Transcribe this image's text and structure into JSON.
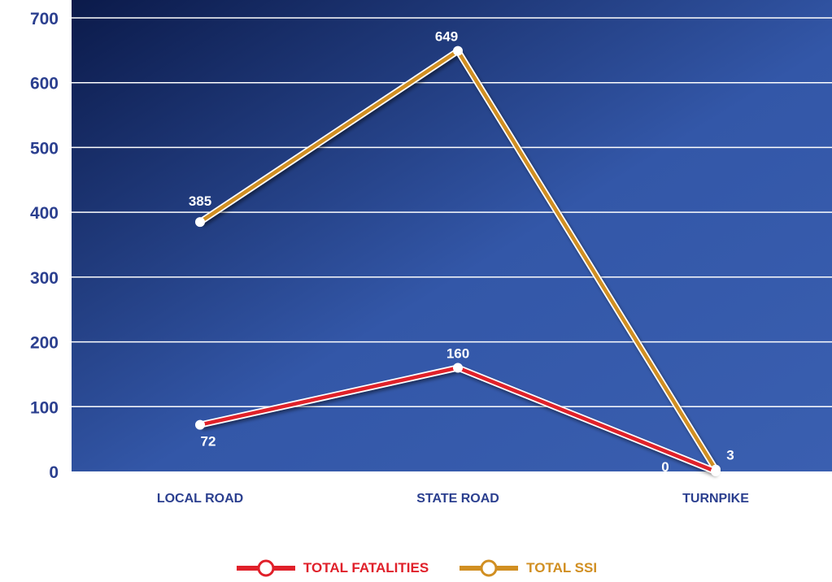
{
  "colors": {
    "plot_bg_dark": "#0b1a4a",
    "plot_bg_light": "#3357a8",
    "axis_text": "#2b3f8f",
    "grid": "#ffffff",
    "fatalities": "#e0202a",
    "ssi": "#d18f22"
  },
  "chart_data": {
    "type": "line",
    "categories": [
      "LOCAL ROAD",
      "STATE ROAD",
      "TURNPIKE"
    ],
    "ylim": [
      0,
      700
    ],
    "yticks": [
      "0",
      "100",
      "200",
      "300",
      "400",
      "500",
      "600",
      "700"
    ],
    "grid": true,
    "legend_position": "bottom",
    "series": [
      {
        "name": "TOTAL FATALITIES",
        "values": [
          72,
          160,
          0
        ],
        "labels": [
          "72",
          "160",
          "0"
        ],
        "color_key": "fatalities"
      },
      {
        "name": "TOTAL SSI",
        "values": [
          385,
          649,
          3
        ],
        "labels": [
          "385",
          "649",
          "3"
        ],
        "color_key": "ssi"
      }
    ]
  }
}
